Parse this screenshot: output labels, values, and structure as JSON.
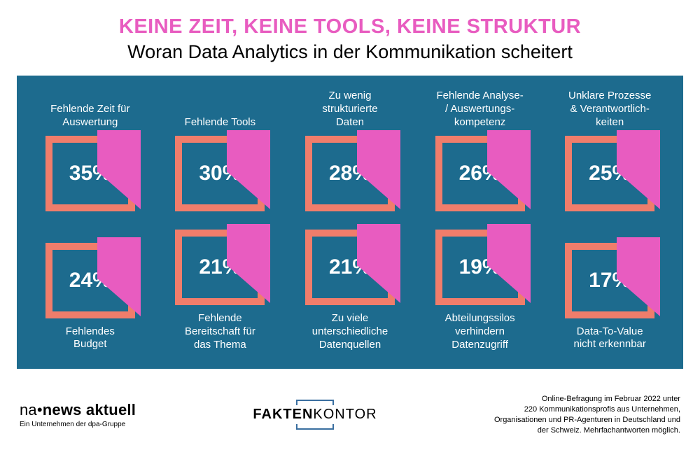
{
  "colors": {
    "headline": "#e85cc0",
    "subhead": "#000000",
    "panel_bg": "#1d6b8e",
    "box_border": "#f07d6b",
    "flag": "#e85cc0",
    "text_on_panel": "#ffffff",
    "box_border_width": 10
  },
  "header": {
    "headline": "KEINE ZEIT, KEINE TOOLS, KEINE STRUKTUR",
    "subhead": "Woran Data Analytics in der Kommunikation scheitert"
  },
  "cards": [
    {
      "label": "Fehlende Zeit für\nAuswertung",
      "value": "35%",
      "row": "top"
    },
    {
      "label": "Fehlende Tools",
      "value": "30%",
      "row": "top"
    },
    {
      "label": "Zu wenig\nstrukturierte\nDaten",
      "value": "28%",
      "row": "top"
    },
    {
      "label": "Fehlende Analyse-\n/ Auswertungs-\nkompetenz",
      "value": "26%",
      "row": "top"
    },
    {
      "label": "Unklare Prozesse\n& Verantwortlich-\nkeiten",
      "value": "25%",
      "row": "top"
    },
    {
      "label": "Fehlendes\nBudget",
      "value": "24%",
      "row": "bottom"
    },
    {
      "label": "Fehlende\nBereitschaft für\ndas Thema",
      "value": "21%",
      "row": "bottom"
    },
    {
      "label": "Zu viele\nunterschiedliche\nDatenquellen",
      "value": "21%",
      "row": "bottom"
    },
    {
      "label": "Abteilungssilos\nverhindern\nDatenzugriff",
      "value": "19%",
      "row": "bottom"
    },
    {
      "label": "Data-To-Value\nnicht erkennbar",
      "value": "17%",
      "row": "bottom"
    }
  ],
  "footer": {
    "logo_na_prefix": "na",
    "logo_na_dot": "•",
    "logo_na_rest": "news aktuell",
    "logo_na_sub": "Ein Unternehmen der dpa-Gruppe",
    "logo_fk_bold": "FAKTEN",
    "logo_fk_rest": "KONTOR",
    "footnote": "Online-Befragung im Februar 2022 unter\n220 Kommunikationsprofis aus Unternehmen,\nOrganisationen und PR-Agenturen in Deutschland und\nder Schweiz. Mehrfachantworten möglich."
  }
}
